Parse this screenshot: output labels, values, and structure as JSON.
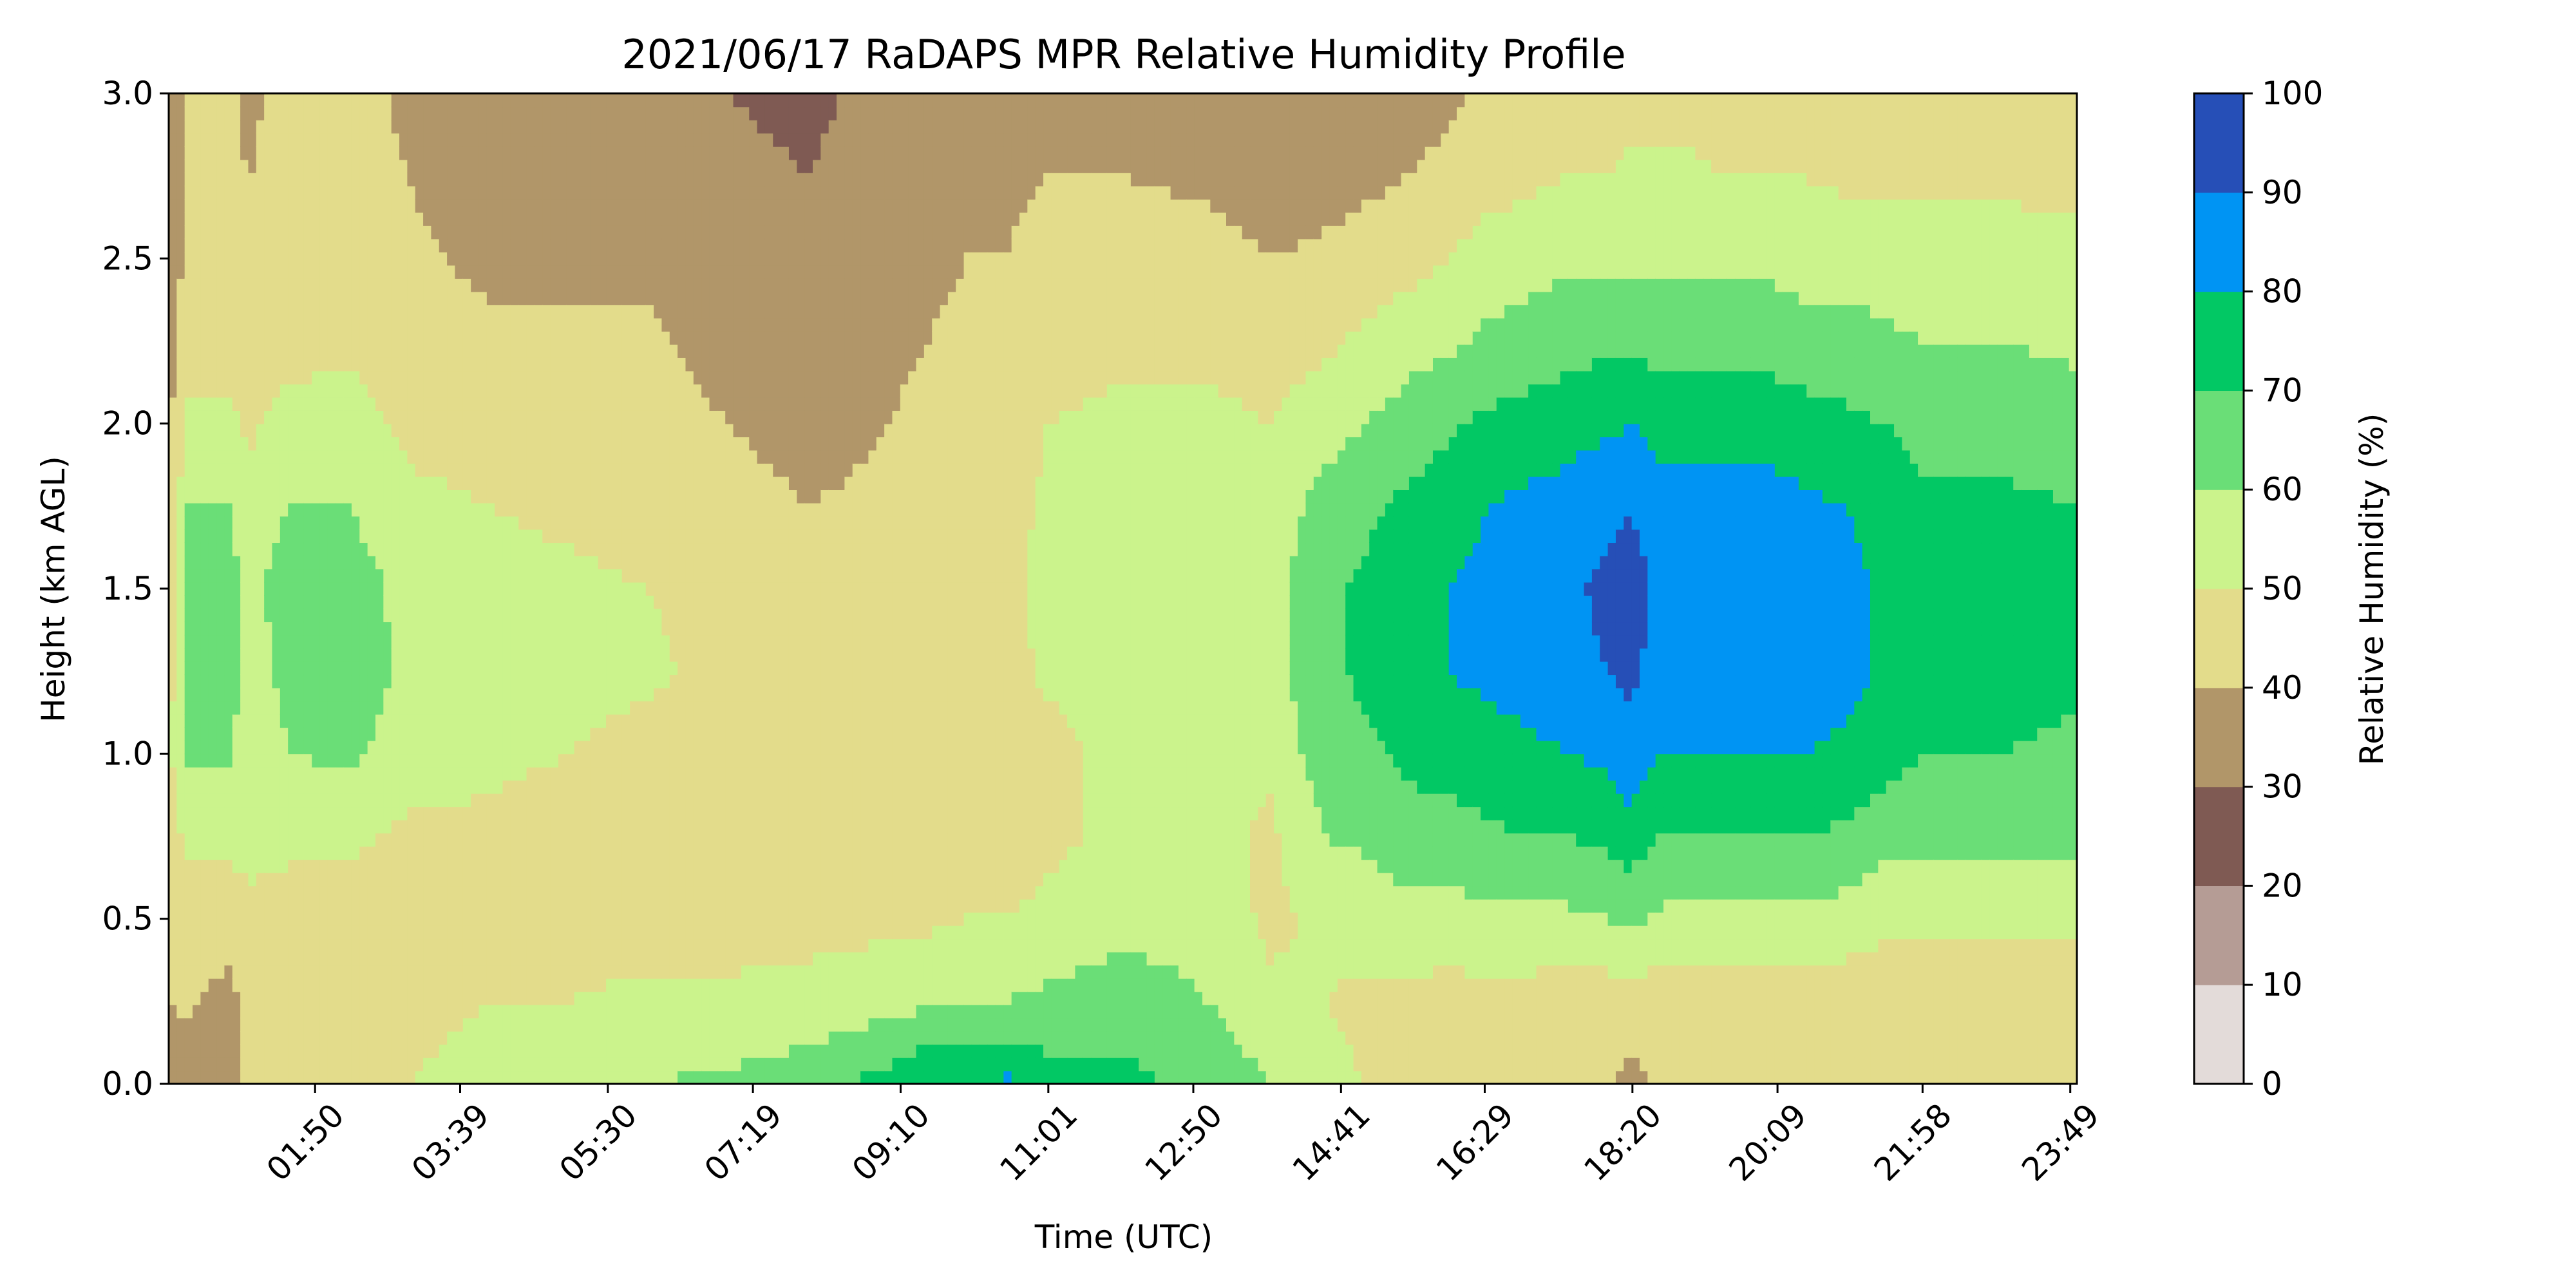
{
  "chart_data": {
    "type": "heatmap",
    "title": "2021/06/17 RaDAPS MPR Relative Humidity Profile",
    "xlabel": "Time (UTC)",
    "ylabel": "Height (km AGL)",
    "colorbar_label": "Relative Humidity (%)",
    "x_range_hours": [
      0.0,
      23.9
    ],
    "x_ticks": [
      {
        "hour": 1.833,
        "label": "01:50"
      },
      {
        "hour": 3.65,
        "label": "03:39"
      },
      {
        "hour": 5.5,
        "label": "05:30"
      },
      {
        "hour": 7.317,
        "label": "07:19"
      },
      {
        "hour": 9.167,
        "label": "09:10"
      },
      {
        "hour": 11.017,
        "label": "11:01"
      },
      {
        "hour": 12.833,
        "label": "12:50"
      },
      {
        "hour": 14.683,
        "label": "14:41"
      },
      {
        "hour": 16.483,
        "label": "16:29"
      },
      {
        "hour": 18.333,
        "label": "18:20"
      },
      {
        "hour": 20.15,
        "label": "20:09"
      },
      {
        "hour": 21.967,
        "label": "21:58"
      },
      {
        "hour": 23.817,
        "label": "23:49"
      }
    ],
    "y_range": [
      0.0,
      3.0
    ],
    "y_ticks": [
      "0.0",
      "0.5",
      "1.0",
      "1.5",
      "2.0",
      "2.5",
      "3.0"
    ],
    "levels": [
      0,
      10,
      20,
      30,
      40,
      50,
      60,
      70,
      80,
      90,
      100
    ],
    "level_labels": [
      "0",
      "10",
      "20",
      "30",
      "40",
      "50",
      "60",
      "70",
      "80",
      "90",
      "100"
    ],
    "level_colors": [
      "#e3dbd9",
      "#b59c95",
      "#7f5a53",
      "#b19669",
      "#e3dc8b",
      "#cbf38c",
      "#6ade77",
      "#02c864",
      "#0094f3",
      "#264fb7"
    ],
    "profiles": [
      {
        "t": 0.0,
        "rh": [
          35,
          40,
          42,
          45,
          48,
          45,
          42,
          40,
          38,
          36,
          36,
          36,
          35
        ]
      },
      {
        "t": 0.25,
        "rh": [
          32,
          42,
          45,
          52,
          62,
          68,
          66,
          60,
          52,
          45,
          42,
          42,
          42
        ]
      },
      {
        "t": 0.75,
        "rh": [
          32,
          36,
          45,
          52,
          62,
          70,
          66,
          60,
          52,
          45,
          42,
          42,
          42
        ]
      },
      {
        "t": 1.0,
        "rh": [
          44,
          44,
          46,
          55,
          50,
          52,
          56,
          52,
          48,
          46,
          44,
          40,
          38
        ]
      },
      {
        "t": 1.5,
        "rh": [
          44,
          40,
          46,
          52,
          60,
          65,
          66,
          60,
          54,
          46,
          44,
          42,
          44
        ]
      },
      {
        "t": 2.25,
        "rh": [
          45,
          44,
          46,
          52,
          62,
          66,
          66,
          60,
          54,
          48,
          46,
          44,
          44
        ]
      },
      {
        "t": 3.0,
        "rh": [
          50,
          46,
          45,
          48,
          55,
          58,
          56,
          52,
          48,
          44,
          42,
          40,
          38
        ]
      },
      {
        "t": 4.0,
        "rh": [
          55,
          50,
          46,
          48,
          52,
          55,
          54,
          50,
          46,
          42,
          38,
          34,
          32
        ]
      },
      {
        "t": 5.0,
        "rh": [
          58,
          50,
          46,
          46,
          50,
          54,
          52,
          48,
          45,
          42,
          38,
          34,
          33
        ]
      },
      {
        "t": 6.0,
        "rh": [
          60,
          52,
          46,
          45,
          46,
          52,
          50,
          46,
          44,
          42,
          38,
          34,
          32
        ]
      },
      {
        "t": 7.0,
        "rh": [
          62,
          52,
          46,
          44,
          45,
          46,
          46,
          44,
          40,
          36,
          34,
          32,
          30
        ]
      },
      {
        "t": 8.0,
        "rh": [
          65,
          54,
          46,
          44,
          44,
          45,
          44,
          40,
          36,
          34,
          32,
          30,
          28
        ]
      },
      {
        "t": 9.0,
        "rh": [
          74,
          56,
          48,
          46,
          44,
          45,
          44,
          42,
          40,
          38,
          36,
          34,
          33
        ]
      },
      {
        "t": 9.5,
        "rh": [
          80,
          58,
          48,
          46,
          44,
          46,
          46,
          45,
          42,
          40,
          38,
          35,
          33
        ]
      },
      {
        "t": 10.0,
        "rh": [
          80,
          60,
          50,
          48,
          46,
          46,
          47,
          46,
          44,
          42,
          40,
          38,
          36
        ]
      },
      {
        "t": 10.5,
        "rh": [
          82,
          60,
          50,
          46,
          44,
          46,
          47,
          46,
          44,
          42,
          40,
          38,
          36
        ]
      },
      {
        "t": 11.0,
        "rh": [
          75,
          62,
          52,
          48,
          46,
          52,
          54,
          52,
          50,
          46,
          44,
          40,
          38
        ]
      },
      {
        "t": 12.0,
        "rh": [
          72,
          66,
          56,
          52,
          54,
          56,
          56,
          54,
          52,
          48,
          44,
          40,
          36
        ]
      },
      {
        "t": 13.0,
        "rh": [
          68,
          60,
          56,
          54,
          56,
          58,
          58,
          56,
          52,
          48,
          44,
          38,
          34
        ]
      },
      {
        "t": 13.8,
        "rh": [
          60,
          52,
          48,
          48,
          52,
          56,
          56,
          54,
          50,
          46,
          40,
          34,
          30
        ]
      },
      {
        "t": 14.5,
        "rh": [
          52,
          50,
          52,
          60,
          66,
          68,
          68,
          64,
          56,
          48,
          42,
          36,
          30
        ]
      },
      {
        "t": 15.0,
        "rh": [
          50,
          48,
          54,
          62,
          68,
          72,
          72,
          68,
          60,
          52,
          44,
          38,
          34
        ]
      },
      {
        "t": 15.5,
        "rh": [
          48,
          48,
          56,
          66,
          72,
          76,
          76,
          72,
          64,
          56,
          46,
          40,
          36
        ]
      },
      {
        "t": 16.0,
        "rh": [
          46,
          46,
          56,
          66,
          74,
          80,
          80,
          76,
          68,
          58,
          50,
          42,
          38
        ]
      },
      {
        "t": 16.5,
        "rh": [
          46,
          46,
          58,
          68,
          76,
          82,
          82,
          80,
          72,
          62,
          54,
          46,
          42
        ]
      },
      {
        "t": 17.0,
        "rh": [
          46,
          46,
          58,
          70,
          78,
          84,
          86,
          82,
          74,
          64,
          56,
          48,
          42
        ]
      },
      {
        "t": 17.5,
        "rh": [
          44,
          44,
          58,
          70,
          80,
          86,
          88,
          84,
          76,
          66,
          58,
          50,
          44
        ]
      },
      {
        "t": 18.0,
        "rh": [
          42,
          44,
          60,
          72,
          82,
          90,
          92,
          88,
          78,
          68,
          58,
          50,
          44
        ]
      },
      {
        "t": 18.3,
        "rh": [
          36,
          46,
          62,
          76,
          86,
          92,
          94,
          90,
          80,
          68,
          58,
          52,
          46
        ]
      },
      {
        "t": 18.7,
        "rh": [
          44,
          44,
          58,
          70,
          80,
          86,
          88,
          84,
          76,
          66,
          58,
          52,
          46
        ]
      },
      {
        "t": 19.0,
        "rh": [
          44,
          44,
          58,
          70,
          80,
          86,
          86,
          84,
          76,
          66,
          58,
          52,
          46
        ]
      },
      {
        "t": 19.5,
        "rh": [
          40,
          44,
          58,
          70,
          80,
          88,
          88,
          84,
          76,
          66,
          58,
          50,
          46
        ]
      },
      {
        "t": 20.0,
        "rh": [
          40,
          44,
          58,
          70,
          80,
          88,
          88,
          84,
          76,
          66,
          58,
          50,
          44
        ]
      },
      {
        "t": 20.5,
        "rh": [
          40,
          44,
          58,
          70,
          80,
          86,
          86,
          82,
          74,
          64,
          56,
          50,
          44
        ]
      },
      {
        "t": 21.0,
        "rh": [
          40,
          44,
          56,
          68,
          78,
          84,
          84,
          80,
          72,
          64,
          56,
          48,
          44
        ]
      },
      {
        "t": 21.5,
        "rh": [
          44,
          44,
          52,
          64,
          74,
          78,
          78,
          76,
          70,
          62,
          54,
          48,
          44
        ]
      },
      {
        "t": 22.0,
        "rh": [
          44,
          45,
          52,
          62,
          70,
          74,
          74,
          72,
          66,
          60,
          54,
          48,
          44
        ]
      },
      {
        "t": 23.0,
        "rh": [
          45,
          45,
          52,
          62,
          70,
          74,
          74,
          72,
          66,
          60,
          54,
          48,
          44
        ]
      },
      {
        "t": 23.9,
        "rh": [
          45,
          45,
          52,
          62,
          68,
          72,
          72,
          70,
          64,
          58,
          52,
          48,
          44
        ]
      }
    ],
    "profile_heights_km": [
      0.0,
      0.25,
      0.5,
      0.75,
      1.0,
      1.25,
      1.5,
      1.75,
      2.0,
      2.25,
      2.5,
      2.75,
      3.0
    ]
  }
}
